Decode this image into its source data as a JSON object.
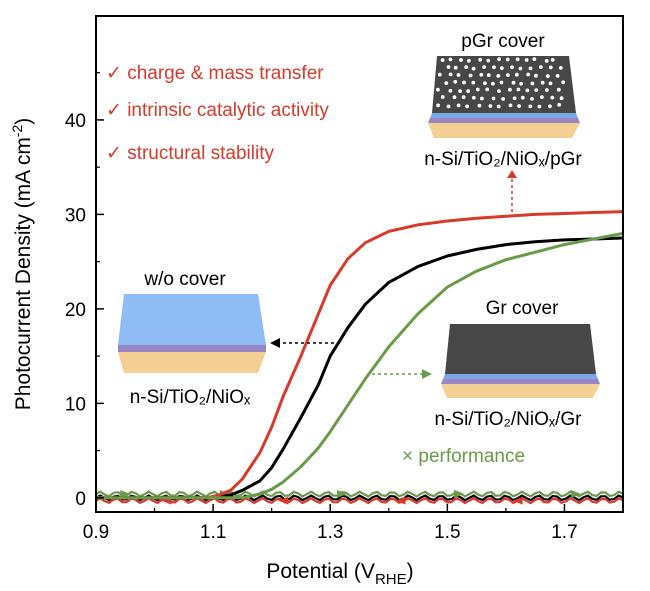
{
  "chart_data": {
    "type": "line",
    "xlabel": {
      "main": "Potential (V",
      "sub": "RHE",
      "tail": ")"
    },
    "ylabel": {
      "main": "Photocurrent Density (mA cm",
      "sup": "-2",
      "tail": ")"
    },
    "xlim": [
      0.9,
      1.8
    ],
    "ylim": [
      -1.5,
      51
    ],
    "xticks": [
      0.9,
      1.1,
      1.3,
      1.5,
      1.7
    ],
    "xtick_labels": [
      "0.9",
      "1.1",
      "1.3",
      "1.5",
      "1.7"
    ],
    "yticks": [
      0,
      10,
      20,
      30,
      40
    ],
    "ytick_labels": [
      "0",
      "10",
      "20",
      "30",
      "40"
    ],
    "grid": false,
    "colors": {
      "red": "#d63a2b",
      "black": "#000000",
      "green": "#6b9a4a"
    },
    "series": [
      {
        "key": "w/o cover",
        "color": "#000000",
        "x": [
          1.1,
          1.13,
          1.15,
          1.18,
          1.2,
          1.22,
          1.25,
          1.28,
          1.3,
          1.33,
          1.36,
          1.4,
          1.45,
          1.5,
          1.55,
          1.6,
          1.65,
          1.7,
          1.75,
          1.8
        ],
        "values": [
          0.0,
          0.3,
          0.8,
          1.8,
          3.2,
          5.2,
          8.5,
          12.0,
          15.0,
          18.0,
          20.5,
          22.8,
          24.5,
          25.6,
          26.3,
          26.8,
          27.1,
          27.3,
          27.4,
          27.5
        ]
      },
      {
        "key": "pGr cover",
        "color": "#d63a2b",
        "x": [
          1.09,
          1.11,
          1.13,
          1.15,
          1.18,
          1.2,
          1.22,
          1.25,
          1.28,
          1.3,
          1.33,
          1.36,
          1.4,
          1.45,
          1.5,
          1.55,
          1.6,
          1.65,
          1.7,
          1.75,
          1.8
        ],
        "values": [
          0.0,
          0.3,
          0.8,
          2.0,
          4.8,
          7.5,
          10.8,
          15.0,
          19.5,
          22.5,
          25.3,
          27.0,
          28.2,
          28.9,
          29.3,
          29.6,
          29.8,
          30.0,
          30.1,
          30.2,
          30.3
        ]
      },
      {
        "key": "Gr cover",
        "color": "#6b9a4a",
        "x": [
          1.15,
          1.18,
          1.2,
          1.22,
          1.25,
          1.28,
          1.3,
          1.33,
          1.36,
          1.4,
          1.45,
          1.5,
          1.55,
          1.6,
          1.65,
          1.7,
          1.75,
          1.8
        ],
        "values": [
          0.0,
          0.4,
          0.9,
          1.7,
          3.3,
          5.3,
          7.0,
          9.8,
          12.6,
          16.0,
          19.5,
          22.3,
          24.0,
          25.2,
          26.0,
          26.8,
          27.4,
          28.0
        ]
      }
    ],
    "annotations": {
      "checks": [
        "✓ charge & mass transfer",
        "✓ intrinsic catalytic activity",
        "✓ structural stability"
      ],
      "pgr_title": "pGr cover",
      "pgr_caption": "n-Si/TiO₂/NiOₓ/pGr",
      "wo_title": "w/o cover",
      "wo_caption": "n-Si/TiO₂/NiOₓ",
      "gr_title": "Gr cover",
      "gr_caption": "n-Si/TiO₂/NiOₓ/Gr",
      "gr_performance": "× performance"
    }
  }
}
